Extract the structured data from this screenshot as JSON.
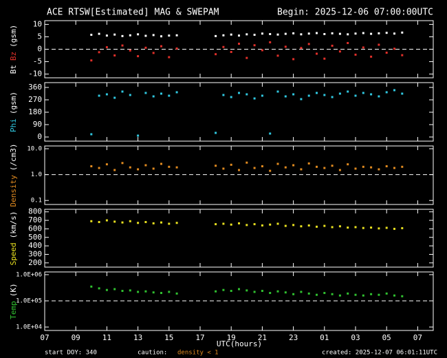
{
  "chart_data": {
    "type": "multi-panel",
    "title": "ACE RTSW[Estimated] MAG & SWEPAM",
    "subtitle": "Begin: 2025-12-06 07:00:00UTC",
    "xlabel": "UTC(hours)",
    "xlim": [
      0,
      25
    ],
    "xticks": [
      {
        "value": 0,
        "label": "07"
      },
      {
        "value": 2,
        "label": "09"
      },
      {
        "value": 4,
        "label": "11"
      },
      {
        "value": 6,
        "label": "13"
      },
      {
        "value": 8,
        "label": "15"
      },
      {
        "value": 10,
        "label": "17"
      },
      {
        "value": 12,
        "label": "19"
      },
      {
        "value": 14,
        "label": "21"
      },
      {
        "value": 16,
        "label": "23"
      },
      {
        "value": 18,
        "label": "01"
      },
      {
        "value": 20,
        "label": "03"
      },
      {
        "value": 22,
        "label": "05"
      },
      {
        "value": 24,
        "label": "07"
      }
    ],
    "x": [
      3,
      3.5,
      4,
      4.5,
      5,
      5.5,
      6,
      6.5,
      7,
      7.5,
      8,
      8.5,
      11,
      11.5,
      12,
      12.5,
      13,
      13.5,
      14,
      14.5,
      15,
      15.5,
      16,
      16.5,
      17,
      17.5,
      18,
      18.5,
      19,
      19.5,
      20,
      20.5,
      21,
      21.5,
      22,
      22.5,
      23
    ],
    "panels": [
      {
        "type": "scatter",
        "ylabel": [
          {
            "text": "Bt",
            "color": "#ffffff"
          },
          {
            "text": "Bz",
            "color": "#e0302a"
          },
          {
            "text": "(gsm)",
            "color": "#ffffff"
          }
        ],
        "ylim": [
          -11.5,
          11.5
        ],
        "yticks": [
          -10,
          -5,
          0,
          5,
          10
        ],
        "refline": 0,
        "log": false,
        "series": [
          {
            "name": "Bt",
            "color": "#ffffff",
            "values": [
              5.8,
              6.2,
              5.5,
              5.9,
              5.3,
              5.6,
              6.0,
              5.4,
              5.7,
              5.2,
              5.5,
              5.6,
              5.3,
              5.6,
              5.9,
              5.5,
              6.0,
              5.8,
              6.3,
              6.1,
              5.9,
              6.2,
              6.4,
              6.0,
              6.3,
              6.5,
              6.1,
              6.4,
              6.2,
              6.0,
              6.3,
              6.5,
              6.2,
              6.4,
              6.6,
              6.3,
              6.7
            ]
          },
          {
            "name": "Bz",
            "color": "#e0302a",
            "values": [
              -4.5,
              -1.2,
              0.8,
              -2.5,
              1.5,
              -0.5,
              -2.8,
              0.6,
              -1.5,
              1.2,
              -3.2,
              0.3,
              -2.0,
              0.9,
              -1.1,
              2.2,
              -3.5,
              1.6,
              -0.4,
              2.8,
              -2.6,
              1.0,
              -4.0,
              0.5,
              2.1,
              -1.8,
              -3.8,
              1.4,
              -0.9,
              2.5,
              -2.2,
              0.7,
              -3.0,
              1.8,
              -1.4,
              0.2,
              -2.4
            ]
          }
        ]
      },
      {
        "type": "scatter",
        "ylabel": [
          {
            "text": "Phi",
            "color": "#30c8e0"
          },
          {
            "text": "(gsm)",
            "color": "#ffffff"
          }
        ],
        "ylim": [
          -30,
          395
        ],
        "yticks": [
          0,
          90,
          180,
          270,
          360
        ],
        "log": false,
        "series": [
          {
            "name": "Phi",
            "color": "#30c8e0",
            "values": [
              20,
              300,
              310,
              285,
              330,
              305,
              10,
              320,
              295,
              315,
              300,
              325,
              30,
              305,
              290,
              320,
              310,
              280,
              300,
              25,
              330,
              295,
              310,
              275,
              300,
              320,
              305,
              290,
              315,
              330,
              300,
              320,
              310,
              295,
              325,
              340,
              315
            ]
          }
        ]
      },
      {
        "type": "scatter",
        "ylabel": [
          {
            "text": "Density",
            "color": "#e08a20"
          },
          {
            "text": "(/cm3)",
            "color": "#ffffff"
          }
        ],
        "ylim": [
          0.07,
          12.8
        ],
        "yticks": [
          0.1,
          {
            "value": 1,
            "label": "1.0"
          },
          {
            "value": 10,
            "label": "10.0"
          }
        ],
        "refline": 1,
        "log": true,
        "series": [
          {
            "name": "Density",
            "color": "#e08a20",
            "values": [
              2.1,
              1.8,
              2.5,
              1.5,
              2.8,
              1.9,
              1.6,
              2.3,
              1.7,
              2.6,
              2.0,
              1.9,
              2.2,
              1.7,
              2.4,
              1.5,
              2.9,
              1.8,
              2.1,
              1.4,
              2.6,
              1.9,
              2.3,
              1.6,
              2.7,
              2.0,
              1.8,
              2.2,
              1.5,
              2.5,
              1.7,
              2.0,
              1.9,
              1.6,
              2.1,
              1.8,
              2.0
            ]
          }
        ]
      },
      {
        "type": "scatter",
        "ylabel": [
          {
            "text": "Speed",
            "color": "#e8e020"
          },
          {
            "text": "(km/s)",
            "color": "#ffffff"
          }
        ],
        "ylim": [
          150,
          830
        ],
        "yticks": [
          200,
          300,
          400,
          500,
          600,
          700,
          800
        ],
        "log": false,
        "series": [
          {
            "name": "Speed",
            "color": "#e8e020",
            "values": [
              690,
              680,
              700,
              685,
              675,
              690,
              670,
              680,
              665,
              675,
              660,
              670,
              655,
              660,
              650,
              665,
              645,
              655,
              640,
              650,
              660,
              635,
              645,
              630,
              640,
              625,
              635,
              620,
              630,
              615,
              620,
              610,
              615,
              605,
              612,
              600,
              608
            ]
          }
        ]
      },
      {
        "type": "scatter",
        "ylabel": [
          {
            "text": "Temp",
            "color": "#30c030"
          },
          {
            "text": "(K)",
            "color": "#ffffff"
          }
        ],
        "ylim": [
          7400,
          1270000
        ],
        "yticks": [
          {
            "value": 10000,
            "label": "1.0E+04"
          },
          {
            "value": 100000,
            "label": "1.0E+05"
          },
          {
            "value": 1000000,
            "label": "1.0E+06"
          }
        ],
        "refline": 100000,
        "log": true,
        "series": [
          {
            "name": "Temp",
            "color": "#30c030",
            "values": [
              350000,
              300000,
              260000,
              280000,
              240000,
              250000,
              220000,
              230000,
              210000,
              200000,
              220000,
              190000,
              230000,
              260000,
              240000,
              280000,
              250000,
              220000,
              240000,
              200000,
              230000,
              210000,
              180000,
              220000,
              190000,
              170000,
              200000,
              180000,
              160000,
              190000,
              170000,
              160000,
              180000,
              170000,
              190000,
              160000,
              150000
            ]
          }
        ]
      }
    ]
  },
  "footer": {
    "start": "start DOY: 340",
    "caution": "caution:",
    "note": "density < 1",
    "created": "created: 2025-12-07 06:01:11UTC"
  }
}
